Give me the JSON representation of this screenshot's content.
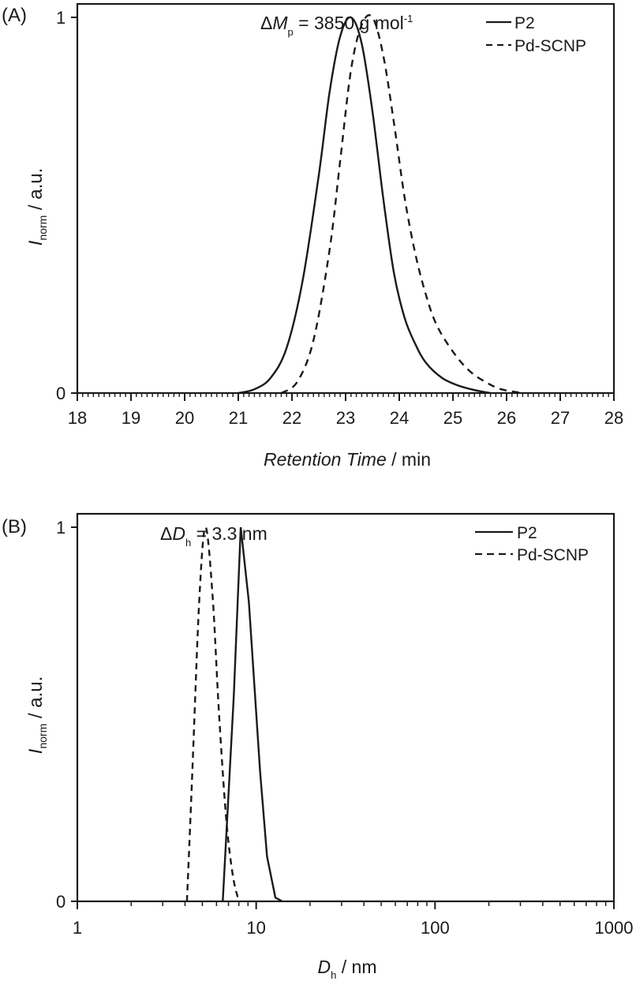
{
  "chart_data": [
    {
      "panel": "(A)",
      "type": "line",
      "title": "",
      "annotation": {
        "prefix": "Δ",
        "var": "M",
        "sub": "p",
        "text": " = 3850 g mol",
        "sup": "-1"
      },
      "xlabel": {
        "italic": "Retention Time",
        "rest": " / min"
      },
      "ylabel": {
        "var": "I",
        "sub": "norm",
        "rest": " / a.u."
      },
      "xlim": [
        18,
        28
      ],
      "ylim": [
        0,
        1
      ],
      "xticks": [
        18,
        19,
        20,
        21,
        22,
        23,
        24,
        25,
        26,
        27,
        28
      ],
      "yticks": [
        0,
        1
      ],
      "legend_position": "upper right",
      "series": [
        {
          "name": "P2",
          "style": "solid",
          "x": [
            21.0,
            21.3,
            21.6,
            21.9,
            22.2,
            22.5,
            22.7,
            22.9,
            23.1,
            23.3,
            23.5,
            23.7,
            23.9,
            24.1,
            24.3,
            24.5,
            24.8,
            25.1,
            25.4,
            25.7
          ],
          "y": [
            0.0,
            0.01,
            0.04,
            0.12,
            0.3,
            0.58,
            0.8,
            0.95,
            1.0,
            0.93,
            0.75,
            0.52,
            0.32,
            0.2,
            0.13,
            0.08,
            0.04,
            0.02,
            0.008,
            0.0
          ]
        },
        {
          "name": "Pd-SCNP",
          "style": "dashed",
          "x": [
            21.8,
            22.1,
            22.4,
            22.7,
            22.9,
            23.1,
            23.3,
            23.5,
            23.7,
            23.9,
            24.1,
            24.3,
            24.5,
            24.7,
            25.0,
            25.3,
            25.6,
            25.9,
            26.3
          ],
          "y": [
            0.0,
            0.03,
            0.14,
            0.38,
            0.62,
            0.86,
            0.98,
            1.0,
            0.9,
            0.72,
            0.52,
            0.37,
            0.26,
            0.18,
            0.11,
            0.06,
            0.03,
            0.01,
            0.0
          ]
        }
      ]
    },
    {
      "panel": "(B)",
      "type": "line",
      "title": "",
      "annotation": {
        "prefix": "Δ",
        "var": "D",
        "sub": "h",
        "text": " = 3.3 nm",
        "sup": ""
      },
      "xlabel": {
        "var": "D",
        "sub": "h",
        "rest": " / nm"
      },
      "ylabel": {
        "var": "I",
        "sub": "norm",
        "rest": " / a.u."
      },
      "xscale": "log",
      "xlim": [
        1,
        1000
      ],
      "ylim": [
        0,
        1
      ],
      "xticks": [
        1,
        10,
        100,
        1000
      ],
      "yticks": [
        0,
        1
      ],
      "legend_position": "upper right",
      "series": [
        {
          "name": "P2",
          "style": "solid",
          "x": [
            6.5,
            7.5,
            8.2,
            9.1,
            10.5,
            11.5,
            12.8,
            14.0
          ],
          "y": [
            0.0,
            0.55,
            1.0,
            0.8,
            0.35,
            0.12,
            0.01,
            0.0
          ]
        },
        {
          "name": "Pd-SCNP",
          "style": "dashed",
          "x": [
            4.1,
            4.4,
            4.8,
            5.2,
            5.7,
            6.2,
            6.8,
            7.4,
            8.0
          ],
          "y": [
            0.0,
            0.35,
            0.8,
            1.0,
            0.82,
            0.5,
            0.22,
            0.07,
            0.0
          ]
        }
      ]
    }
  ],
  "labels": {
    "panelA": "(A)",
    "panelB": "(B)",
    "tick0": "0",
    "tick1": "1",
    "legendP2": "P2",
    "legendPd": "Pd-SCNP",
    "xTicksA": [
      "18",
      "19",
      "20",
      "21",
      "22",
      "23",
      "24",
      "25",
      "26",
      "27",
      "28"
    ],
    "xTicksB": [
      "1",
      "10",
      "100",
      "1000"
    ],
    "annA_delta": "Δ",
    "annA_var": "M",
    "annA_sub": "p",
    "annA_text": " = 3850 g mol",
    "annA_sup": "-1",
    "annB_delta": "Δ",
    "annB_var": "D",
    "annB_sub": "h",
    "annB_text": " = 3.3 nm",
    "xlabelA_italic": "Retention Time",
    "xlabelA_rest": " / min",
    "xlabelB_var": "D",
    "xlabelB_sub": "h",
    "xlabelB_rest": " / nm",
    "ylabel_var": "I",
    "ylabel_sub": "norm",
    "ylabel_rest": " / a.u."
  },
  "colors": {
    "line": "#1a1a1a",
    "background": "#ffffff"
  }
}
